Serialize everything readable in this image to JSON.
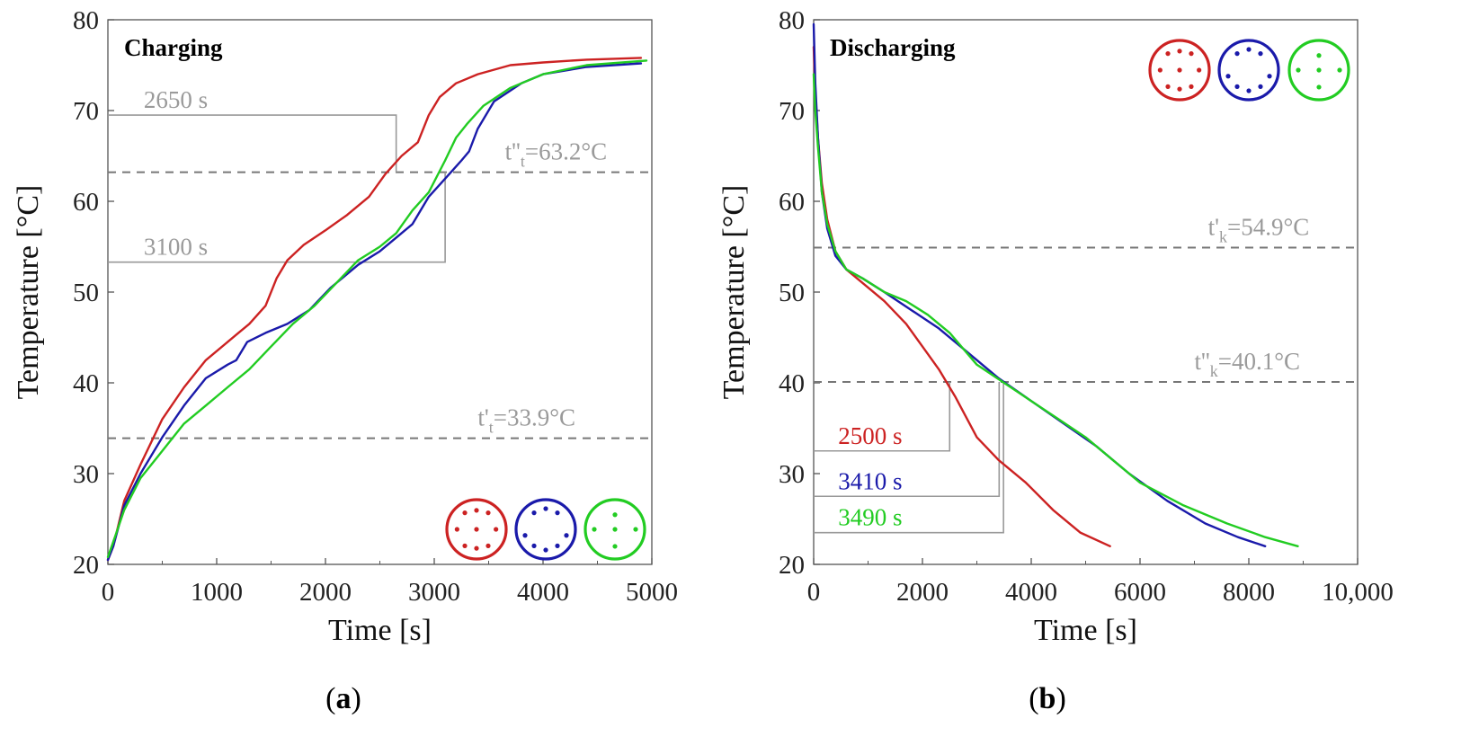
{
  "chart_data": [
    {
      "id": "a",
      "type": "line",
      "title": "Charging",
      "caption_letter": "a",
      "xlabel": "Time [s]",
      "ylabel": "Temperature [°C]",
      "xlim": [
        0,
        5000
      ],
      "ylim": [
        20,
        80
      ],
      "xticks": [
        "0",
        "1000",
        "2000",
        "3000",
        "4000",
        "5000"
      ],
      "xtick_values": [
        0,
        1000,
        2000,
        3000,
        4000,
        5000
      ],
      "yticks": [
        "20",
        "30",
        "40",
        "50",
        "60",
        "70",
        "80"
      ],
      "ytick_values": [
        20,
        30,
        40,
        50,
        60,
        70,
        80
      ],
      "ref_lines": [
        {
          "y": 63.2,
          "label_main": "t''",
          "label_sub": "t",
          "label_rest": "=63.2°C",
          "label_x": 3650
        },
        {
          "y": 33.9,
          "label_main": "t'",
          "label_sub": "t",
          "label_rest": "=33.9°C",
          "label_x": 3400
        }
      ],
      "annotations": [
        {
          "text": "2650 s",
          "x": 2650,
          "y": 69.5,
          "y_ref": 63.2,
          "color": "#9a9a9a",
          "text_x": 330
        },
        {
          "text": "3100 s",
          "x": 3100,
          "y": 53.3,
          "y_ref": 63.2,
          "color": "#9a9a9a",
          "text_x": 330
        }
      ],
      "legend_position": "bottom-right",
      "series": [
        {
          "color": "#cc2222",
          "symbol_dots": [
            [
              0,
              0
            ],
            [
              -0.48,
              0.68
            ],
            [
              0.48,
              0.68
            ],
            [
              -0.48,
              -0.68
            ],
            [
              0.48,
              -0.68
            ],
            [
              0,
              0.78
            ],
            [
              0,
              -0.78
            ],
            [
              -0.8,
              0
            ],
            [
              0.8,
              0
            ]
          ],
          "x": [
            0,
            50,
            150,
            300,
            500,
            700,
            900,
            1100,
            1200,
            1300,
            1450,
            1550,
            1650,
            1800,
            2000,
            2200,
            2400,
            2550,
            2700,
            2850,
            2950,
            3050,
            3200,
            3400,
            3700,
            4000,
            4400,
            4900
          ],
          "y": [
            20.5,
            22,
            27,
            31,
            36,
            39.5,
            42.5,
            44.5,
            45.5,
            46.5,
            48.5,
            51.5,
            53.5,
            55.2,
            56.8,
            58.5,
            60.5,
            63,
            65,
            66.5,
            69.5,
            71.5,
            73,
            74,
            75,
            75.3,
            75.6,
            75.8
          ]
        },
        {
          "color": "#1a1aaa",
          "symbol_dots": [
            [
              -0.48,
              0.68
            ],
            [
              0.48,
              0.68
            ],
            [
              -0.48,
              -0.68
            ],
            [
              0.48,
              -0.68
            ],
            [
              -0.85,
              0.25
            ],
            [
              0.85,
              0.25
            ],
            [
              0,
              0.85
            ],
            [
              0,
              -0.85
            ]
          ],
          "x": [
            0,
            50,
            150,
            300,
            500,
            700,
            900,
            1100,
            1180,
            1280,
            1450,
            1650,
            1850,
            2050,
            2300,
            2500,
            2650,
            2800,
            2950,
            3100,
            3250,
            3320,
            3400,
            3550,
            3800,
            4000,
            4400,
            4900
          ],
          "y": [
            20.5,
            22,
            26.5,
            30,
            34,
            37.5,
            40.5,
            42,
            42.5,
            44.5,
            45.5,
            46.5,
            48,
            50.5,
            53,
            54.5,
            56,
            57.5,
            60.5,
            62.5,
            64.5,
            65.5,
            68,
            71,
            73,
            74,
            74.8,
            75.2
          ]
        },
        {
          "color": "#22cc22",
          "symbol_dots": [
            [
              0,
              0
            ],
            [
              -0.85,
              0
            ],
            [
              0.85,
              0
            ],
            [
              0,
              -0.6
            ],
            [
              0,
              0.7
            ]
          ],
          "x": [
            0,
            50,
            150,
            300,
            500,
            700,
            900,
            1100,
            1300,
            1500,
            1700,
            1900,
            2100,
            2300,
            2500,
            2650,
            2800,
            2950,
            3100,
            3200,
            3300,
            3450,
            3700,
            4000,
            4400,
            4950
          ],
          "y": [
            20.8,
            22.5,
            26,
            29.5,
            32.5,
            35.5,
            37.5,
            39.5,
            41.5,
            44,
            46.5,
            48.5,
            51,
            53.5,
            55,
            56.5,
            59,
            61,
            64.5,
            67,
            68.5,
            70.5,
            72.5,
            74,
            75,
            75.5
          ]
        }
      ]
    },
    {
      "id": "b",
      "type": "line",
      "title": "Discharging",
      "caption_letter": "b",
      "xlabel": "Time [s]",
      "ylabel": "Temperature [°C]",
      "xlim": [
        0,
        10000
      ],
      "ylim": [
        20,
        80
      ],
      "xticks": [
        "0",
        "2000",
        "4000",
        "6000",
        "8000",
        "10,000"
      ],
      "xtick_values": [
        0,
        2000,
        4000,
        6000,
        8000,
        10000
      ],
      "yticks": [
        "20",
        "30",
        "40",
        "50",
        "60",
        "70",
        "80"
      ],
      "ytick_values": [
        20,
        30,
        40,
        50,
        60,
        70,
        80
      ],
      "ref_lines": [
        {
          "y": 54.9,
          "label_main": "t'",
          "label_sub": "k",
          "label_rest": "=54.9°C",
          "label_x": 7250
        },
        {
          "y": 40.1,
          "label_main": "t''",
          "label_sub": "k",
          "label_rest": "=40.1°C",
          "label_x": 7000
        }
      ],
      "annotations": [
        {
          "text": "2500 s",
          "x": 2500,
          "y": 32.5,
          "y_ref": 40.1,
          "color": "#cc2222",
          "text_x": 450
        },
        {
          "text": "3410 s",
          "x": 3410,
          "y": 27.5,
          "y_ref": 40.1,
          "color": "#1a1aaa",
          "text_x": 450
        },
        {
          "text": "3490 s",
          "x": 3490,
          "y": 23.5,
          "y_ref": 40.1,
          "color": "#22cc22",
          "text_x": 450
        }
      ],
      "legend_position": "top-right",
      "series": [
        {
          "color": "#cc2222",
          "symbol_dots": [
            [
              0,
              0
            ],
            [
              -0.48,
              0.68
            ],
            [
              0.48,
              0.68
            ],
            [
              -0.48,
              -0.68
            ],
            [
              0.48,
              -0.68
            ],
            [
              0,
              0.78
            ],
            [
              0,
              -0.78
            ],
            [
              -0.8,
              0
            ],
            [
              0.8,
              0
            ]
          ],
          "x": [
            0,
            30,
            80,
            150,
            250,
            400,
            600,
            900,
            1300,
            1700,
            2000,
            2300,
            2600,
            3000,
            3400,
            3900,
            4400,
            4900,
            5450
          ],
          "y": [
            77,
            72,
            67,
            62,
            58,
            54.5,
            52.5,
            51,
            49,
            46.5,
            44,
            41.5,
            38.5,
            34,
            31.5,
            29,
            26,
            23.5,
            22
          ]
        },
        {
          "color": "#1a1aaa",
          "symbol_dots": [
            [
              -0.48,
              0.68
            ],
            [
              0.48,
              0.68
            ],
            [
              -0.48,
              -0.68
            ],
            [
              0.48,
              -0.68
            ],
            [
              -0.85,
              0.25
            ],
            [
              0.85,
              0.25
            ],
            [
              0,
              0.85
            ],
            [
              0,
              -0.85
            ]
          ],
          "x": [
            0,
            30,
            80,
            150,
            250,
            400,
            600,
            900,
            1300,
            1800,
            2300,
            2800,
            3400,
            4000,
            4600,
            5200,
            5800,
            6500,
            7200,
            7800,
            8300
          ],
          "y": [
            79.5,
            73,
            67,
            61,
            57,
            54,
            52.5,
            51.5,
            50,
            48,
            46,
            43.5,
            40.5,
            38,
            35.5,
            33,
            30,
            27,
            24.5,
            23,
            22
          ]
        },
        {
          "color": "#22cc22",
          "symbol_dots": [
            [
              0,
              0
            ],
            [
              -0.85,
              0
            ],
            [
              0.85,
              0
            ],
            [
              0,
              -0.6
            ],
            [
              0,
              0.7
            ]
          ],
          "x": [
            0,
            30,
            80,
            150,
            250,
            400,
            600,
            900,
            1300,
            1700,
            2100,
            2500,
            3000,
            3500,
            4000,
            4500,
            5000,
            5500,
            6000,
            6800,
            7600,
            8300,
            8900
          ],
          "y": [
            74,
            70,
            66,
            61,
            57.5,
            54.5,
            52.5,
            51.5,
            50,
            49,
            47.5,
            45.5,
            42,
            40,
            38,
            36,
            34,
            31.5,
            29,
            26.5,
            24.5,
            23,
            22
          ]
        }
      ]
    }
  ]
}
